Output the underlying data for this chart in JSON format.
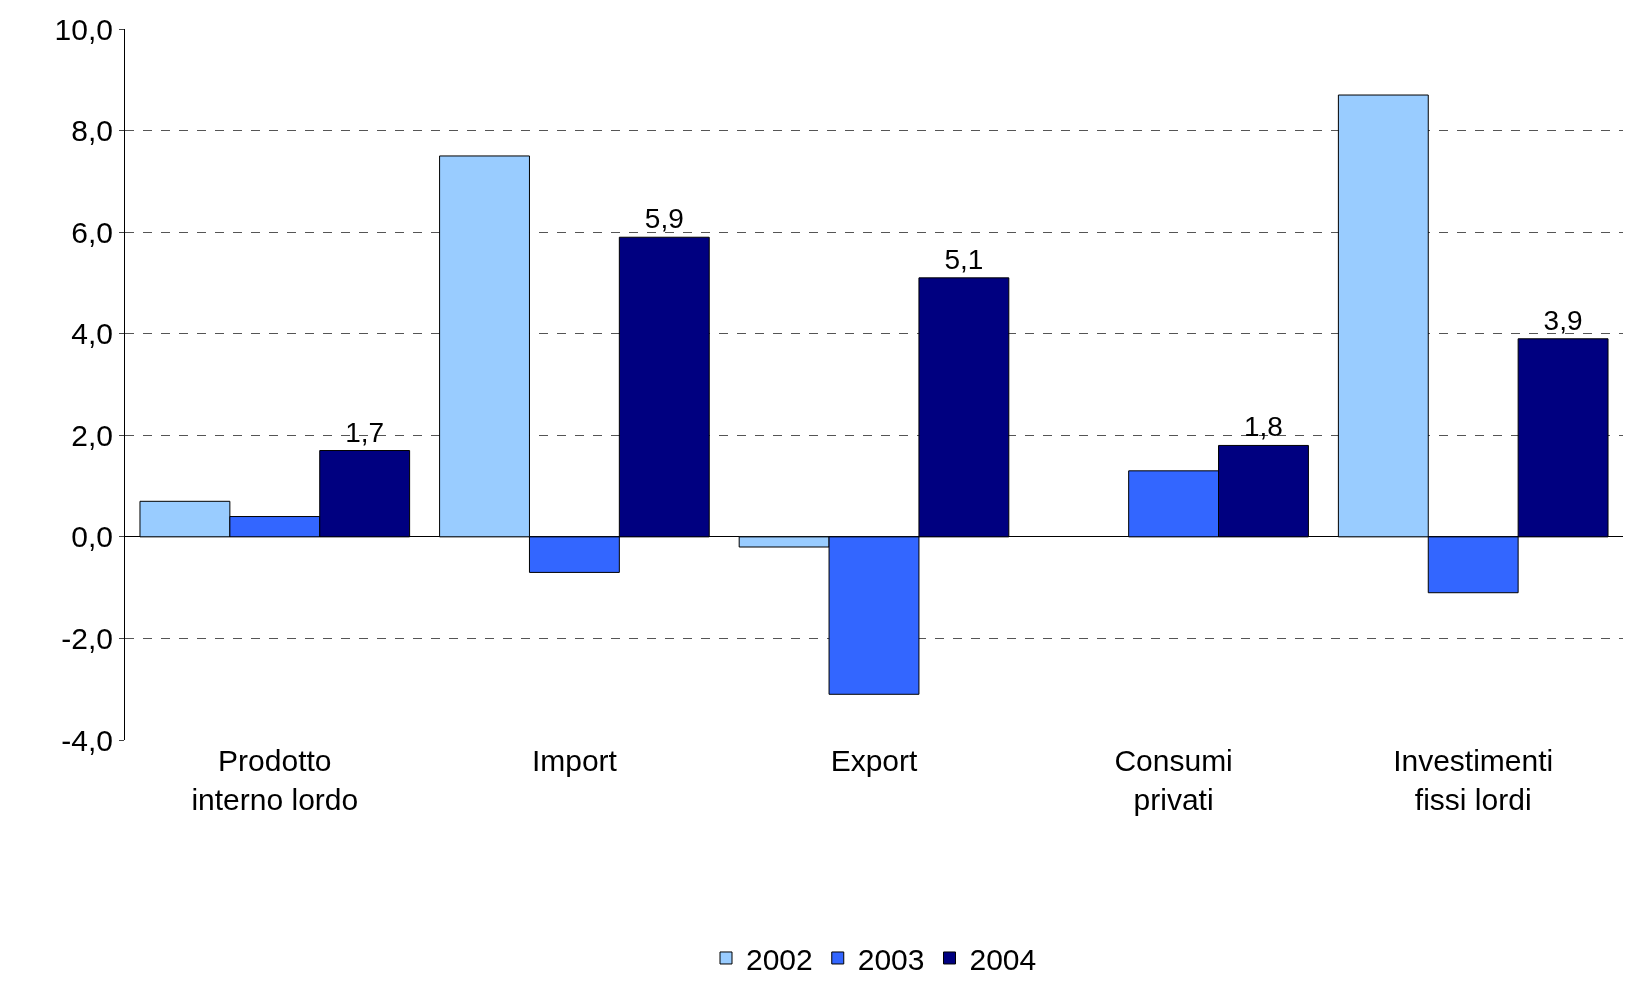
{
  "chart_data": {
    "type": "bar",
    "categories": [
      "Prodotto\ninterno lordo",
      "Import",
      "Export",
      "Consumi\nprivati",
      "Investimenti\nfissi lordi"
    ],
    "series": [
      {
        "name": "2002",
        "color": "#99ccff",
        "values": [
          0.7,
          7.5,
          -0.2,
          null,
          8.7
        ]
      },
      {
        "name": "2003",
        "color": "#3366ff",
        "values": [
          0.4,
          -0.7,
          -3.1,
          1.3,
          -1.1
        ]
      },
      {
        "name": "2004",
        "color": "#000080",
        "values": [
          1.7,
          5.9,
          5.1,
          1.8,
          3.9
        ],
        "value_labels": [
          "1,7",
          "5,9",
          "5,1",
          "1,8",
          "3,9"
        ]
      }
    ],
    "ylim": [
      -4,
      10
    ],
    "yticks": [
      {
        "value": -4,
        "label": "-4,0"
      },
      {
        "value": -2,
        "label": "-2,0"
      },
      {
        "value": 0,
        "label": "0,0"
      },
      {
        "value": 2,
        "label": "2,0"
      },
      {
        "value": 4,
        "label": "4,0"
      },
      {
        "value": 6,
        "label": "6,0"
      },
      {
        "value": 8,
        "label": "8,0"
      },
      {
        "value": 10,
        "label": "10,0"
      }
    ],
    "grid": "y",
    "legend": "bottom"
  }
}
